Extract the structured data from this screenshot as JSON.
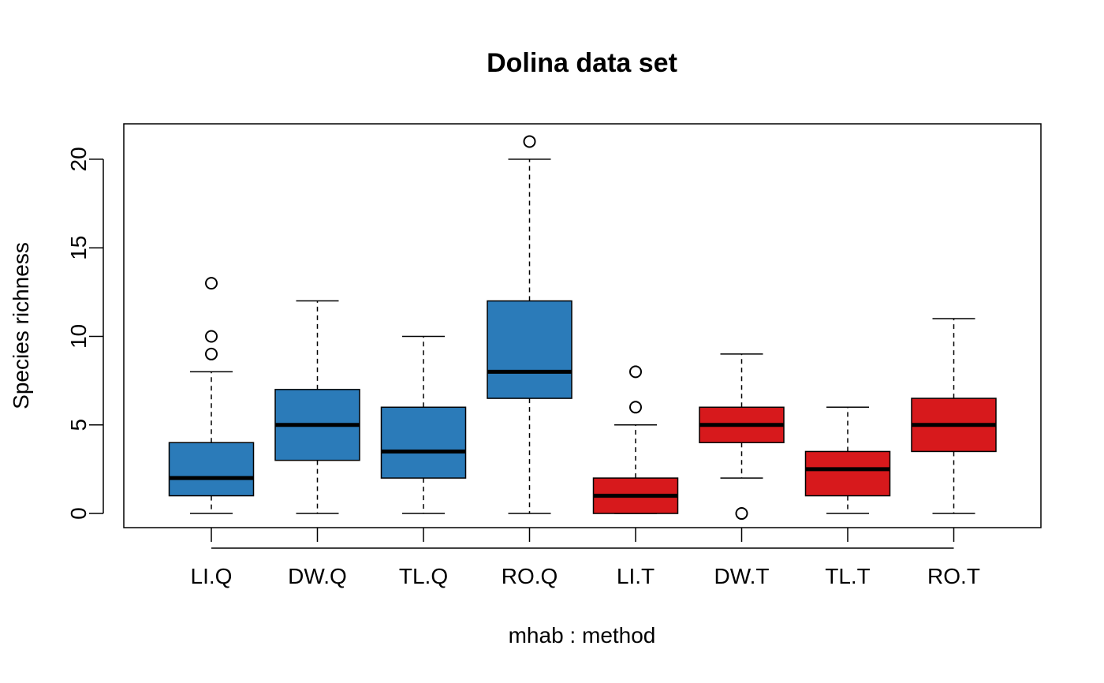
{
  "chart_data": {
    "type": "boxplot",
    "title": "Dolina data set",
    "xlabel": "mhab : method",
    "ylabel": "Species richness",
    "ylim": [
      -0.8,
      22
    ],
    "yticks": [
      0,
      5,
      10,
      15,
      20
    ],
    "grid": false,
    "categories": [
      "LI.Q",
      "DW.Q",
      "TL.Q",
      "RO.Q",
      "LI.T",
      "DW.T",
      "TL.T",
      "RO.T"
    ],
    "colors": {
      "Q": "#2B7BB9",
      "T": "#D7191C"
    },
    "boxes": [
      {
        "label": "LI.Q",
        "group": "Q",
        "whisker_low": 0,
        "q1": 1,
        "median": 2,
        "q3": 4,
        "whisker_high": 8,
        "outliers": [
          9,
          10,
          13
        ]
      },
      {
        "label": "DW.Q",
        "group": "Q",
        "whisker_low": 0,
        "q1": 3,
        "median": 5,
        "q3": 7,
        "whisker_high": 12,
        "outliers": []
      },
      {
        "label": "TL.Q",
        "group": "Q",
        "whisker_low": 0,
        "q1": 2,
        "median": 3.5,
        "q3": 6,
        "whisker_high": 10,
        "outliers": []
      },
      {
        "label": "RO.Q",
        "group": "Q",
        "whisker_low": 0,
        "q1": 6.5,
        "median": 8,
        "q3": 12,
        "whisker_high": 20,
        "outliers": [
          21
        ]
      },
      {
        "label": "LI.T",
        "group": "T",
        "whisker_low": 0,
        "q1": 0,
        "median": 1,
        "q3": 2,
        "whisker_high": 5,
        "outliers": [
          6,
          8
        ]
      },
      {
        "label": "DW.T",
        "group": "T",
        "whisker_low": 2,
        "q1": 4,
        "median": 5,
        "q3": 6,
        "whisker_high": 9,
        "outliers": [
          0
        ]
      },
      {
        "label": "TL.T",
        "group": "T",
        "whisker_low": 0,
        "q1": 1,
        "median": 2.5,
        "q3": 3.5,
        "whisker_high": 6,
        "outliers": []
      },
      {
        "label": "RO.T",
        "group": "T",
        "whisker_low": 0,
        "q1": 3.5,
        "median": 5,
        "q3": 6.5,
        "whisker_high": 11,
        "outliers": []
      }
    ]
  }
}
